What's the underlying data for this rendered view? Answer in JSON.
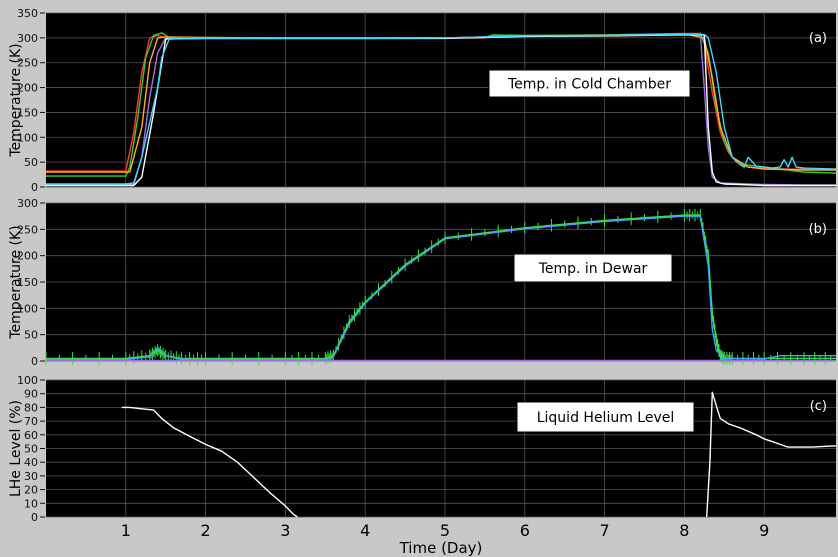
{
  "chart_data": [
    {
      "type": "line",
      "panel_label": "(a)",
      "annotation": "Temp. in Cold Chamber",
      "xlabel": "",
      "ylabel": "Temperature (K)",
      "xlim": [
        0,
        9.9
      ],
      "ylim": [
        0,
        350
      ],
      "yticks": [
        0,
        50,
        100,
        150,
        200,
        250,
        300,
        350
      ],
      "grid": true,
      "series": [
        {
          "color": "#ff3b30",
          "x": [
            0.0,
            0.95,
            1.0,
            1.1,
            1.2,
            1.3,
            1.4,
            1.5,
            2,
            3,
            4,
            5,
            5.5,
            5.6,
            6,
            7,
            8,
            8.2,
            8.25,
            8.35,
            8.45,
            8.55,
            8.65,
            8.8,
            9,
            9.3,
            9.5,
            9.9
          ],
          "y": [
            32,
            32,
            32,
            110,
            230,
            300,
            305,
            300,
            300,
            300,
            300,
            300,
            300,
            305,
            305,
            306,
            309,
            309,
            290,
            190,
            110,
            70,
            50,
            40,
            38,
            36,
            36,
            36
          ]
        },
        {
          "color": "#33cc33",
          "x": [
            0.0,
            1.0,
            1.05,
            1.15,
            1.25,
            1.35,
            1.45,
            1.55,
            2,
            3,
            4,
            5,
            5.5,
            5.6,
            6,
            7,
            8,
            8.2,
            8.3,
            8.4,
            8.5,
            8.6,
            8.75,
            9,
            9.2,
            9.5,
            9.9
          ],
          "y": [
            22,
            22,
            40,
            140,
            260,
            305,
            310,
            300,
            300,
            300,
            300,
            300,
            301,
            306,
            305,
            306,
            308,
            308,
            270,
            160,
            90,
            60,
            45,
            40,
            36,
            30,
            28
          ]
        },
        {
          "color": "#ffb020",
          "x": [
            0.0,
            1.05,
            1.2,
            1.3,
            1.4,
            1.5,
            2,
            3,
            4,
            5,
            6,
            7,
            8,
            8.25,
            8.35,
            8.45,
            8.6,
            8.8,
            9,
            9.5,
            9.9
          ],
          "y": [
            30,
            30,
            120,
            250,
            300,
            302,
            301,
            300,
            300,
            300,
            304,
            305,
            308,
            300,
            220,
            120,
            60,
            40,
            36,
            34,
            34
          ]
        },
        {
          "color": "#a070e0",
          "x": [
            0.0,
            1.1,
            1.2,
            1.3,
            1.4,
            1.5,
            2,
            3,
            4,
            5,
            6,
            7,
            8,
            8.2,
            8.25,
            8.3,
            8.35,
            8.45,
            9,
            9.5,
            9.9
          ],
          "y": [
            5,
            5,
            60,
            180,
            270,
            300,
            300,
            300,
            300,
            300,
            304,
            305,
            307,
            307,
            200,
            80,
            20,
            8,
            5,
            4,
            4
          ]
        },
        {
          "color": "#ffffff",
          "x": [
            0.0,
            1.1,
            1.2,
            1.35,
            1.5,
            2,
            3,
            4,
            5,
            6,
            7,
            8,
            8.25,
            8.3,
            8.35,
            8.4,
            8.5,
            8.7,
            9,
            9.5,
            9.9
          ],
          "y": [
            3,
            3,
            20,
            150,
            298,
            299,
            299,
            299,
            299,
            303,
            304,
            306,
            306,
            120,
            30,
            10,
            6,
            5,
            3,
            3,
            3
          ]
        },
        {
          "color": "#40d8ff",
          "x": [
            0.0,
            1.0,
            1.1,
            1.2,
            1.3,
            1.4,
            1.45,
            1.55,
            1.65,
            2,
            3,
            4,
            5,
            6,
            7,
            8,
            8.25,
            8.3,
            8.4,
            8.5,
            8.6,
            8.7,
            8.75,
            8.8,
            8.9,
            9.0,
            9.1,
            9.2,
            9.25,
            9.3,
            9.35,
            9.4,
            9.5,
            9.9
          ],
          "y": [
            6,
            6,
            8,
            60,
            130,
            200,
            260,
            300,
            298,
            299,
            299,
            299,
            300,
            304,
            305,
            307,
            307,
            300,
            230,
            120,
            60,
            45,
            40,
            60,
            42,
            40,
            38,
            40,
            55,
            40,
            60,
            40,
            38,
            36
          ]
        }
      ]
    },
    {
      "type": "line",
      "panel_label": "(b)",
      "annotation": "Temp. in Dewar",
      "xlabel": "",
      "ylabel": "Temperature (K)",
      "xlim": [
        0,
        9.9
      ],
      "ylim": [
        0,
        300
      ],
      "yticks": [
        0,
        50,
        100,
        150,
        200,
        250,
        300
      ],
      "grid": true,
      "series": [
        {
          "color": "#33e633",
          "x": [
            0.0,
            1.0,
            1.3,
            1.4,
            1.5,
            1.7,
            2,
            3,
            3.5,
            3.6,
            3.8,
            4,
            4.5,
            5,
            6,
            7,
            8,
            8.2,
            8.3,
            8.35,
            8.4,
            8.45,
            8.5,
            8.6,
            9,
            9.5,
            9.9
          ],
          "y": [
            5,
            5,
            10,
            20,
            10,
            5,
            5,
            5,
            5,
            10,
            75,
            112,
            183,
            234,
            253,
            267,
            277,
            277,
            200,
            90,
            40,
            10,
            5,
            5,
            5,
            5,
            5
          ],
          "noise": 0.9
        },
        {
          "color": "#4aa0ff",
          "x": [
            0.0,
            1.0,
            1.3,
            1.4,
            1.5,
            1.7,
            2,
            3,
            3.5,
            3.6,
            3.8,
            4,
            4.5,
            5,
            6,
            7,
            8,
            8.2,
            8.3,
            8.35,
            8.4,
            8.5,
            9,
            9.2,
            9.5,
            9.9
          ],
          "y": [
            3,
            3,
            8,
            25,
            10,
            3,
            3,
            3,
            3,
            8,
            70,
            110,
            180,
            232,
            251,
            265,
            275,
            275,
            180,
            60,
            20,
            5,
            4,
            10,
            10,
            10
          ]
        },
        {
          "color": "#a070e0",
          "x": [
            0.0,
            9.9
          ],
          "y": [
            1,
            1
          ]
        }
      ]
    },
    {
      "type": "line",
      "panel_label": "(c)",
      "annotation": "Liquid Helium Level",
      "xlabel": "Time (Day)",
      "ylabel": "LHe Level (%)",
      "xlim": [
        0,
        9.9
      ],
      "ylim": [
        0,
        100
      ],
      "yticks": [
        0,
        10,
        20,
        30,
        40,
        50,
        60,
        70,
        80,
        90,
        100
      ],
      "xticks": [
        1,
        2,
        3,
        4,
        5,
        6,
        7,
        8,
        9
      ],
      "grid": true,
      "series": [
        {
          "color": "#ffffff",
          "x": [
            0.95,
            1.05,
            1.2,
            1.35,
            1.45,
            1.6,
            1.8,
            2,
            2.2,
            2.4,
            2.6,
            2.8,
            3.0,
            3.1,
            3.15
          ],
          "y": [
            80,
            80,
            79,
            78,
            72,
            65,
            59,
            53,
            48,
            40,
            29,
            18,
            8,
            2,
            0
          ]
        },
        {
          "color": "#ffffff",
          "x": [
            8.28,
            8.32,
            8.35,
            8.38,
            8.45,
            8.55,
            8.7,
            8.9,
            9,
            9.1,
            9.3,
            9.6,
            9.9
          ],
          "y": [
            0,
            40,
            91,
            85,
            72,
            68,
            65,
            60,
            57,
            55,
            51,
            51,
            52
          ]
        }
      ]
    }
  ]
}
